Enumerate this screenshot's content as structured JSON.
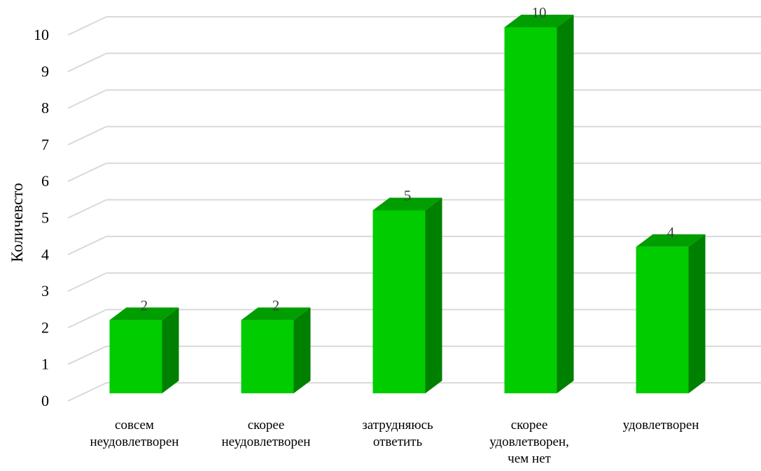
{
  "chart_data": {
    "type": "bar",
    "style": "3d-column",
    "title": "",
    "xlabel": "",
    "ylabel": "Количевсто",
    "ylim": [
      0,
      10
    ],
    "yticks": [
      0,
      1,
      2,
      3,
      4,
      5,
      6,
      7,
      8,
      9,
      10
    ],
    "grid": true,
    "legend": "none",
    "categories": [
      [
        "совсем",
        "неудовлетворен"
      ],
      [
        "скорее",
        "неудовлетворен"
      ],
      [
        "затрудняюсь",
        "ответить"
      ],
      [
        "скорее",
        "удовлетворен,",
        "чем нет"
      ],
      [
        "удовлетворен"
      ]
    ],
    "values": [
      2,
      2,
      5,
      10,
      4
    ],
    "data_labels": [
      "2",
      "2",
      "5",
      "10",
      "4"
    ],
    "colors": {
      "bar_front": "#00cc00",
      "bar_top": "#009e00",
      "bar_side": "#008000",
      "grid": "#d9d9d9",
      "data_label": "#404040"
    }
  }
}
